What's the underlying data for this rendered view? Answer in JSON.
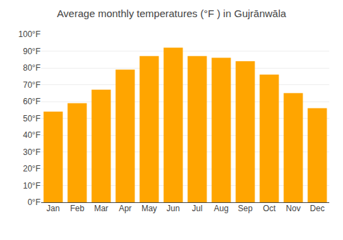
{
  "chart_data": {
    "type": "bar",
    "title": "Average monthly temperatures (°F ) in Gujrānwāla",
    "categories": [
      "Jan",
      "Feb",
      "Mar",
      "Apr",
      "May",
      "Jun",
      "Jul",
      "Aug",
      "Sep",
      "Oct",
      "Nov",
      "Dec"
    ],
    "values": [
      54,
      59,
      67,
      79,
      87,
      92,
      87,
      86,
      84,
      76,
      65,
      56
    ],
    "color": "#FFA500",
    "ylim": [
      0,
      100
    ],
    "yticks": [
      {
        "value": 0,
        "label": "0°F"
      },
      {
        "value": 10,
        "label": "10°F"
      },
      {
        "value": 20,
        "label": "20°F"
      },
      {
        "value": 30,
        "label": "30°F"
      },
      {
        "value": 40,
        "label": "40°F"
      },
      {
        "value": 50,
        "label": "50°F"
      },
      {
        "value": 60,
        "label": "60°F"
      },
      {
        "value": 70,
        "label": "70°F"
      },
      {
        "value": 80,
        "label": "80°F"
      },
      {
        "value": 90,
        "label": "90°F"
      },
      {
        "value": 100,
        "label": "100°F"
      }
    ],
    "grid": true
  }
}
